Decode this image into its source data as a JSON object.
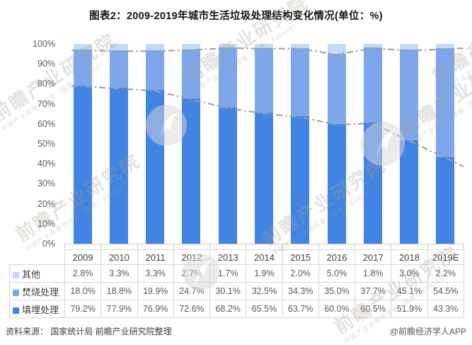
{
  "title": "图表2：2009-2019年城市生活垃圾处理结构变化情况(单位：%)",
  "chart_data": {
    "type": "bar",
    "stacked": true,
    "title": "图表2：2009-2019年城市生活垃圾处理结构变化情况(单位：%)",
    "categories": [
      "2009",
      "2010",
      "2011",
      "2012",
      "2013",
      "2014",
      "2015",
      "2016",
      "2017",
      "2018",
      "2019E"
    ],
    "series": [
      {
        "name": "其他",
        "color": "#c3dbf5",
        "values": [
          2.8,
          3.3,
          3.3,
          2.7,
          1.7,
          1.9,
          2.0,
          5.0,
          1.8,
          3.0,
          2.2
        ]
      },
      {
        "name": "焚烧处理",
        "color": "#7da7ea",
        "values": [
          18.0,
          18.8,
          19.9,
          24.7,
          30.1,
          32.5,
          34.3,
          35.0,
          37.7,
          45.1,
          54.5
        ]
      },
      {
        "name": "填埋处理",
        "color": "#4184e4",
        "values": [
          79.2,
          77.9,
          76.9,
          72.6,
          68.2,
          65.5,
          63.7,
          60.0,
          60.5,
          51.9,
          43.3
        ]
      }
    ],
    "xlabel": "",
    "ylabel": "",
    "ylim": [
      0,
      100
    ],
    "y_ticks": [
      "100%",
      "90%",
      "80%",
      "70%",
      "60%",
      "50%",
      "40%",
      "30%",
      "20%",
      "10%",
      "0%"
    ],
    "grid": false,
    "legend_position": "table-left",
    "series_line_color": "#9c9c9c",
    "value_suffix": "%"
  },
  "footer": {
    "source": "资料来源： 国家统计局 前瞻产业研究院整理",
    "credit": "@前瞻经济学人APP"
  },
  "watermark": {
    "text": "前瞻产业研究院",
    "subtext": "中国产业咨询领导者（股票：839599）"
  }
}
